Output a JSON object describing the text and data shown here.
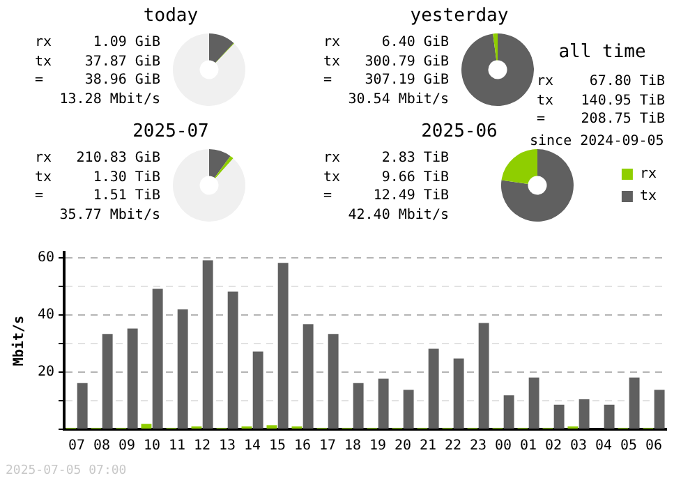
{
  "chart_data": [
    {
      "type": "donut",
      "title": "today",
      "categories": [
        null,
        null,
        null
      ],
      "values": [
        11.9,
        0.3,
        87.8
      ],
      "colors": [
        "#606060",
        "#8fce00",
        "#f0f0f0"
      ],
      "annotations": [
        "rx 1.09 GiB",
        "tx 37.87 GiB",
        "= 38.96 GiB",
        "13.28 Mbit/s"
      ]
    },
    {
      "type": "donut",
      "title": "yesterday",
      "categories": [
        null,
        null
      ],
      "values": [
        97.9,
        2.1
      ],
      "colors": [
        "#606060",
        "#8fce00"
      ],
      "annotations": [
        "rx 6.40 GiB",
        "tx 300.79 GiB",
        "= 307.19 GiB",
        "30.54 Mbit/s"
      ]
    },
    {
      "type": "other",
      "title": "all time",
      "annotations": [
        "rx 67.80 TiB",
        "tx 140.95 TiB",
        "= 208.75 TiB",
        "since 2024-09-05"
      ]
    },
    {
      "type": "donut",
      "title": "2025-07",
      "categories": [
        null,
        null,
        null
      ],
      "values": [
        10.0,
        1.6,
        88.4
      ],
      "colors": [
        "#606060",
        "#8fce00",
        "#f0f0f0"
      ],
      "annotations": [
        "rx 210.83 GiB",
        "tx 1.30 TiB",
        "= 1.51 TiB",
        "35.77 Mbit/s"
      ]
    },
    {
      "type": "donut",
      "title": "2025-06",
      "categories": [
        "tx",
        "rx"
      ],
      "values": [
        77.3,
        22.7
      ],
      "colors": [
        "#606060",
        "#8fce00"
      ],
      "legend": "right",
      "annotations": [
        "rx 2.83 TiB",
        "tx 9.66 TiB",
        "= 12.49 TiB",
        "42.40 Mbit/s"
      ]
    },
    {
      "type": "bar",
      "ylabel": "Mbit/s",
      "categories": [
        "07",
        "08",
        "09",
        "10",
        "11",
        "12",
        "13",
        "14",
        "15",
        "16",
        "17",
        "18",
        "19",
        "20",
        "21",
        "22",
        "23",
        "00",
        "01",
        "02",
        "03",
        "04",
        "05",
        "06"
      ],
      "series": [
        {
          "color": "#8fce00",
          "values": [
            0.5,
            0.5,
            0.5,
            1.9,
            0.5,
            1.0,
            0.5,
            1.0,
            1.4,
            1.0,
            0.5,
            0.5,
            0.5,
            0.5,
            0.5,
            0.5,
            0.5,
            0.5,
            0.5,
            0.5,
            1.0,
            0,
            0.5,
            0.5
          ]
        },
        {
          "color": "#606060",
          "values": [
            16.2,
            33.4,
            35.3,
            49.2,
            42.0,
            59.2,
            48.2,
            27.2,
            58.3,
            36.8,
            33.4,
            16.2,
            17.7,
            13.8,
            28.2,
            24.8,
            37.2,
            11.9,
            18.1,
            8.6,
            10.5,
            8.6,
            18.1,
            13.8
          ]
        }
      ],
      "ylim": [
        0,
        62
      ],
      "yticks": [
        {
          "value": 0,
          "label": null
        },
        {
          "value": 10,
          "label": null
        },
        20,
        {
          "value": 30,
          "label": null
        },
        40,
        {
          "value": 50,
          "label": null
        },
        60
      ],
      "grid": "y",
      "legend": false,
      "annotations": [
        "2025-07-05 07:00"
      ]
    }
  ]
}
